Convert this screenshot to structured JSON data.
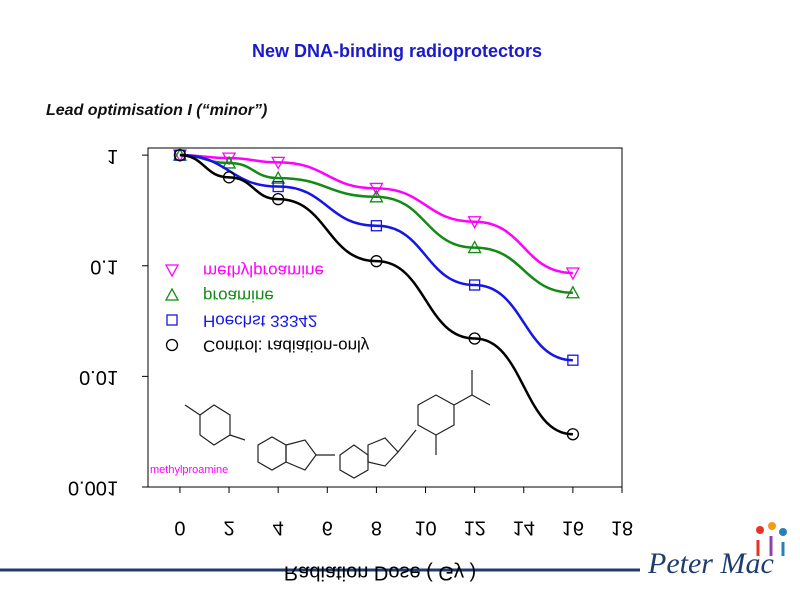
{
  "slide": {
    "title": "New DNA-binding radioprotectors",
    "subtitle": "Lead optimisation I (“minor”)",
    "brand": "Peter Mac"
  },
  "chart_data": {
    "type": "line",
    "x_label": "Radiation Dose ( Gy )",
    "annotation": "methylproamine",
    "log_y": true,
    "xlim": [
      -1.3,
      18
    ],
    "xticks": [
      0,
      2,
      4,
      6,
      8,
      10,
      12,
      14,
      16,
      18
    ],
    "ylim": [
      0.001,
      1.16
    ],
    "yticks": [
      {
        "value": 0.001,
        "label": "0.001"
      },
      {
        "value": 0.01,
        "label": "0.01"
      },
      {
        "value": 0.1,
        "label": "0.1"
      },
      1
    ],
    "series": [
      {
        "name": "methylproamine",
        "color": "#ff00ff",
        "marker": "triangle-down",
        "x": [
          0,
          2,
          4,
          8,
          12,
          16
        ],
        "values": [
          1,
          0.94,
          0.86,
          0.5,
          0.25,
          0.086
        ]
      },
      {
        "name": "proamine",
        "color": "#138a13",
        "marker": "triangle-up",
        "x": [
          0,
          2,
          4,
          8,
          12,
          16
        ],
        "values": [
          1,
          0.85,
          0.62,
          0.42,
          0.146,
          0.057
        ]
      },
      {
        "name": "Hoechst 33342",
        "color": "#1515e6",
        "marker": "square",
        "x": [
          0,
          4,
          8,
          12,
          16
        ],
        "values": [
          1,
          0.52,
          0.23,
          0.067,
          0.014
        ]
      },
      {
        "name": "Control: radiation-only",
        "color": "#000000",
        "marker": "circle",
        "x": [
          0,
          2,
          4,
          8,
          12,
          16
        ],
        "values": [
          1,
          0.63,
          0.4,
          0.11,
          0.022,
          0.003
        ]
      }
    ]
  }
}
